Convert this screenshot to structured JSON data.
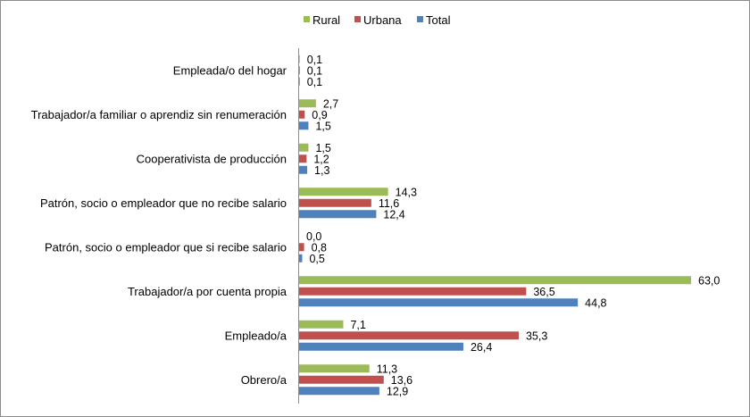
{
  "chart_data": {
    "type": "bar",
    "orientation": "horizontal",
    "categories": [
      "Empleada/o del hogar",
      "Trabajador/a familiar o aprendiz sin renumeración",
      "Cooperativista de producción",
      "Patrón, socio o empleador que no recibe salario",
      "Patrón, socio o empleador que si recibe salario",
      "Trabajador/a por cuenta propia",
      "Empleado/a",
      "Obrero/a"
    ],
    "series": [
      {
        "name": "Rural",
        "color": "#9BBB59",
        "values": [
          0.1,
          2.7,
          1.5,
          14.3,
          0.0,
          63.0,
          7.1,
          11.3
        ],
        "labels": [
          "0,1",
          "2,7",
          "1,5",
          "14,3",
          "0,0",
          "63,0",
          "7,1",
          "11,3"
        ]
      },
      {
        "name": "Urbana",
        "color": "#C0504D",
        "values": [
          0.1,
          0.9,
          1.2,
          11.6,
          0.8,
          36.5,
          35.3,
          13.6
        ],
        "labels": [
          "0,1",
          "0,9",
          "1,2",
          "11,6",
          "0,8",
          "36,5",
          "35,3",
          "13,6"
        ]
      },
      {
        "name": "Total",
        "color": "#4F81BD",
        "values": [
          0.1,
          1.5,
          1.3,
          12.4,
          0.5,
          44.8,
          26.4,
          12.9
        ],
        "labels": [
          "0,1",
          "1,5",
          "1,3",
          "12,4",
          "0,5",
          "44,8",
          "26,4",
          "12,9"
        ]
      }
    ],
    "xlim": [
      0,
      70
    ],
    "legend": "top",
    "grid": false,
    "title": "",
    "xlabel": "",
    "ylabel": ""
  }
}
